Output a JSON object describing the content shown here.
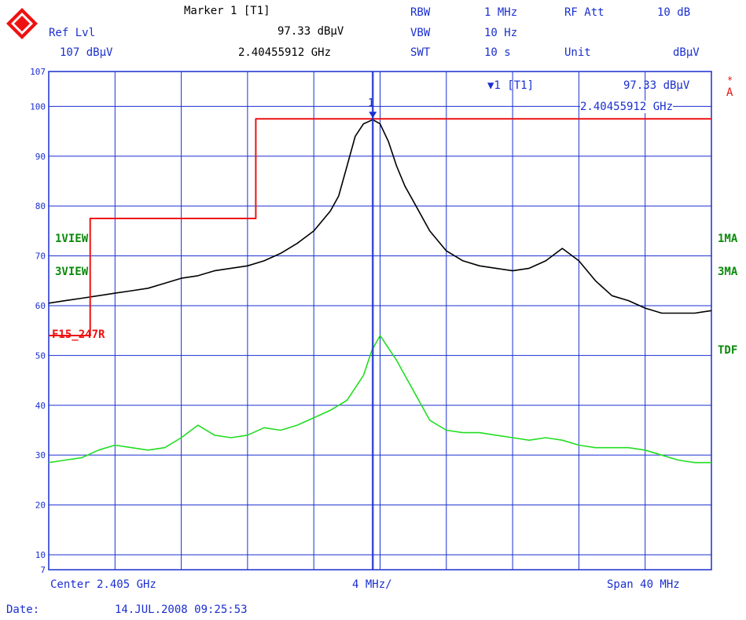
{
  "header": {
    "marker_title": "Marker 1 [T1]",
    "marker_level": "97.33 dBµV",
    "marker_freq": "2.40455912 GHz",
    "ref_lvl_label": "Ref Lvl",
    "ref_lvl_value": "107 dBµV",
    "rbw_label": "RBW",
    "rbw_value": "1 MHz",
    "vbw_label": "VBW",
    "vbw_value": "10 Hz",
    "swt_label": "SWT",
    "swt_value": "10 s",
    "rf_att_label": "RF Att",
    "rf_att_value": "10 dB",
    "unit_label": "Unit",
    "unit_value": "dBµV"
  },
  "marker_box": {
    "label": "▼1 [T1]",
    "level": "97.33 dBµV",
    "freq": "2.40455912 GHz",
    "marker_number": "1"
  },
  "side_labels": {
    "view1": "1VIEW",
    "view3": "3VIEW",
    "limit_line": "F15_247R",
    "right_1ma": "1MA",
    "right_3ma": "3MA",
    "right_tdf": "TDF",
    "right_star": "*",
    "right_a": "A"
  },
  "footer": {
    "center": "Center 2.405 GHz",
    "div": "4 MHz/",
    "span": "Span 40 MHz",
    "date_label": "Date:",
    "date_value": "14.JUL.2008  09:25:53"
  },
  "colors": {
    "grid": "#1a2fd0",
    "trace1": "#000000",
    "trace3": "#22dd22",
    "limit": "#ee1111",
    "marker": "#1a2fd0"
  },
  "chart_data": {
    "type": "line",
    "xlabel": "",
    "ylabel": "",
    "x_unit": "MHz",
    "xlim": [
      2385,
      2425
    ],
    "ylim": [
      7,
      107
    ],
    "y_ticks": [
      107,
      100,
      90,
      80,
      70,
      60,
      50,
      40,
      30,
      20,
      10,
      7
    ],
    "grid": true,
    "marker": {
      "x": 2404.55912,
      "y": 97.33
    },
    "series": [
      {
        "name": "1VIEW",
        "x": [
          2385,
          2386,
          2387,
          2388,
          2389,
          2390,
          2391,
          2392,
          2393,
          2394,
          2395,
          2396,
          2397,
          2398,
          2399,
          2400,
          2401,
          2401.5,
          2402,
          2402.5,
          2403,
          2403.5,
          2404,
          2404.55912,
          2405,
          2405.5,
          2406,
          2406.5,
          2407,
          2408,
          2409,
          2410,
          2411,
          2412,
          2413,
          2414,
          2415,
          2416,
          2417,
          2418,
          2419,
          2420,
          2421,
          2422,
          2423,
          2424,
          2425
        ],
        "values": [
          60.5,
          61,
          61.5,
          62,
          62.5,
          63,
          63.5,
          64.5,
          65.5,
          66,
          67,
          67.5,
          68,
          69,
          70.5,
          72.5,
          75,
          77,
          79,
          82,
          88,
          94,
          96.5,
          97.33,
          96.5,
          93,
          88,
          84,
          81,
          75,
          71,
          69,
          68,
          67.5,
          67,
          67.5,
          69,
          71.5,
          69,
          65,
          62,
          61,
          59.5,
          58.5,
          58.5,
          58.5,
          59
        ]
      },
      {
        "name": "3VIEW",
        "x": [
          2385,
          2386,
          2387,
          2388,
          2389,
          2390,
          2391,
          2392,
          2393,
          2394,
          2395,
          2396,
          2397,
          2398,
          2399,
          2400,
          2401,
          2402,
          2403,
          2404,
          2404.5,
          2405,
          2406,
          2407,
          2408,
          2409,
          2410,
          2411,
          2412,
          2413,
          2414,
          2415,
          2416,
          2417,
          2418,
          2419,
          2420,
          2421,
          2422,
          2423,
          2424,
          2425
        ],
        "values": [
          28.5,
          29,
          29.5,
          31,
          32,
          31.5,
          31,
          31.5,
          33.5,
          36,
          34,
          33.5,
          34,
          35.5,
          35,
          36,
          37.5,
          39,
          41,
          46,
          51,
          54,
          49,
          43,
          37,
          35,
          34.5,
          34.5,
          34,
          33.5,
          33,
          33.5,
          33,
          32,
          31.5,
          31.5,
          31.5,
          31,
          30,
          29,
          28.5,
          28.5
        ]
      },
      {
        "name": "F15_247R",
        "x": [
          2385,
          2387.5,
          2387.5,
          2397.5,
          2397.5,
          2425
        ],
        "values": [
          54,
          54,
          77.5,
          77.5,
          97.5,
          97.5
        ]
      }
    ]
  }
}
